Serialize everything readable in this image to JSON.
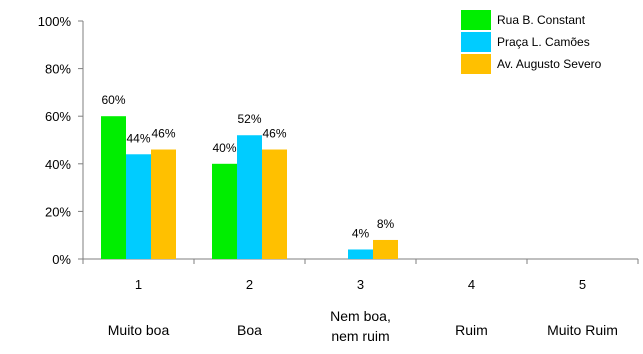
{
  "chart_data": {
    "type": "bar",
    "categories": [
      "1",
      "2",
      "3",
      "4",
      "5"
    ],
    "category_labels": [
      [
        "Muito boa"
      ],
      [
        "Boa"
      ],
      [
        "Nem boa,",
        "nem ruim"
      ],
      [
        "Ruim"
      ],
      [
        "Muito Ruim"
      ]
    ],
    "series": [
      {
        "name": "Rua B. Constant",
        "color": "#00EE00",
        "values": [
          60,
          40,
          0,
          0,
          0
        ],
        "labels": [
          "60%",
          "40%",
          "",
          "",
          ""
        ]
      },
      {
        "name": "Praça L. Camões",
        "color": "#00CCFF",
        "values": [
          44,
          52,
          4,
          0,
          0
        ],
        "labels": [
          "44%",
          "52%",
          "4%",
          "",
          ""
        ]
      },
      {
        "name": "Av. Augusto Severo",
        "color": "#FFC000",
        "values": [
          46,
          46,
          8,
          0,
          0
        ],
        "labels": [
          "46%",
          "46%",
          "8%",
          "",
          ""
        ]
      }
    ],
    "y_ticks": [
      "0%",
      "20%",
      "40%",
      "60%",
      "80%",
      "100%"
    ],
    "ylim": [
      0,
      100
    ],
    "grid": false,
    "legend_position": "top-right"
  }
}
